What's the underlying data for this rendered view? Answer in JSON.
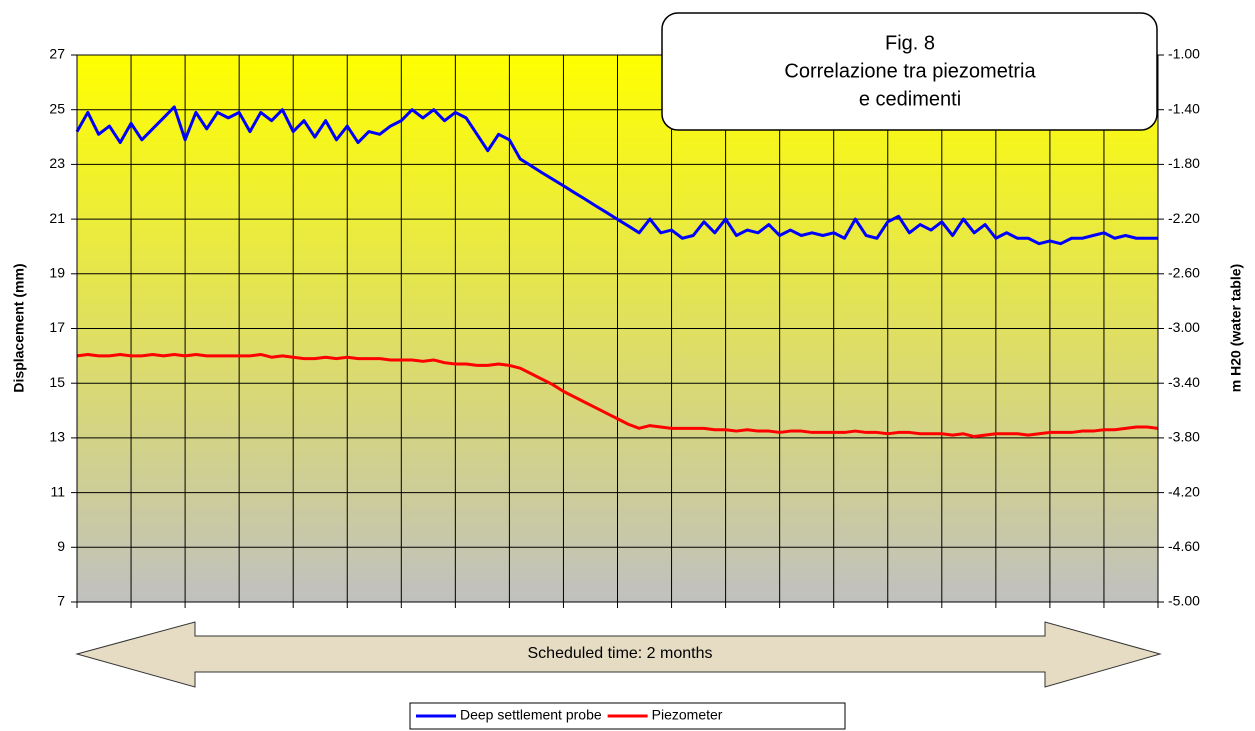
{
  "chart_data": {
    "type": "line",
    "title": [
      "Fig. 8",
      "Correlazione tra piezometria",
      "e cedimenti"
    ],
    "ylabel": "Displacement (mm)",
    "y2label": "m H20 (water table)",
    "annotation": "Scheduled time: 2 months",
    "ylim": [
      7,
      27
    ],
    "yticks": [
      7,
      9,
      11,
      13,
      15,
      17,
      19,
      21,
      23,
      25,
      27
    ],
    "y2lim": [
      -5,
      -1
    ],
    "y2ticks": [
      {
        "value": -5,
        "label": "-5.00"
      },
      {
        "value": -4.6,
        "label": "-4.60"
      },
      {
        "value": -4.2,
        "label": "-4.20"
      },
      {
        "value": -3.8,
        "label": "-3.80"
      },
      {
        "value": -3.4,
        "label": "-3.40"
      },
      {
        "value": -3,
        "label": "-3.00"
      },
      {
        "value": -2.6,
        "label": "-2.60"
      },
      {
        "value": -2.2,
        "label": "-2.20"
      },
      {
        "value": -1.8,
        "label": "-1.80"
      },
      {
        "value": -1.4,
        "label": "-1.40"
      },
      {
        "value": -1,
        "label": "-1.00"
      }
    ],
    "grid": true,
    "legend": "bottom",
    "series": [
      {
        "name": "Deep settlement probe",
        "color": "#0000ff",
        "values": [
          24.2,
          24.9,
          24.1,
          24.4,
          23.8,
          24.5,
          23.9,
          24.3,
          24.7,
          25.1,
          23.9,
          24.9,
          24.3,
          24.9,
          24.7,
          24.9,
          24.2,
          24.9,
          24.6,
          25.0,
          24.2,
          24.6,
          24.0,
          24.6,
          23.9,
          24.4,
          23.8,
          24.2,
          24.1,
          24.4,
          24.6,
          25.0,
          24.7,
          25.0,
          24.6,
          24.9,
          24.7,
          24.1,
          23.5,
          24.1,
          23.9,
          23.2,
          22.95,
          22.7,
          22.46,
          22.22,
          21.97,
          21.73,
          21.48,
          21.24,
          20.99,
          20.75,
          20.5,
          21.0,
          20.5,
          20.6,
          20.3,
          20.4,
          20.9,
          20.5,
          21.0,
          20.4,
          20.6,
          20.5,
          20.8,
          20.4,
          20.6,
          20.4,
          20.5,
          20.4,
          20.5,
          20.3,
          21.0,
          20.4,
          20.3,
          20.9,
          21.1,
          20.5,
          20.8,
          20.6,
          20.9,
          20.4,
          21.0,
          20.5,
          20.8,
          20.3,
          20.5,
          20.3,
          20.3,
          20.1,
          20.2,
          20.1,
          20.3,
          20.3,
          20.4,
          20.5,
          20.3,
          20.4,
          20.3,
          20.3,
          20.3
        ]
      },
      {
        "name": "Piezometer",
        "color": "#ff0000",
        "axis": "y2",
        "values": [
          -3.2,
          -3.19,
          -3.2,
          -3.2,
          -3.19,
          -3.2,
          -3.2,
          -3.19,
          -3.2,
          -3.19,
          -3.2,
          -3.19,
          -3.2,
          -3.2,
          -3.2,
          -3.2,
          -3.2,
          -3.19,
          -3.21,
          -3.2,
          -3.21,
          -3.22,
          -3.22,
          -3.21,
          -3.22,
          -3.21,
          -3.22,
          -3.22,
          -3.22,
          -3.23,
          -3.23,
          -3.23,
          -3.24,
          -3.23,
          -3.25,
          -3.26,
          -3.26,
          -3.27,
          -3.27,
          -3.26,
          -3.27,
          -3.29,
          -3.33,
          -3.37,
          -3.41,
          -3.46,
          -3.5,
          -3.54,
          -3.58,
          -3.62,
          -3.66,
          -3.7,
          -3.73,
          -3.71,
          -3.72,
          -3.73,
          -3.73,
          -3.73,
          -3.73,
          -3.74,
          -3.74,
          -3.75,
          -3.74,
          -3.75,
          -3.75,
          -3.76,
          -3.75,
          -3.75,
          -3.76,
          -3.76,
          -3.76,
          -3.76,
          -3.75,
          -3.76,
          -3.76,
          -3.77,
          -3.76,
          -3.76,
          -3.77,
          -3.77,
          -3.77,
          -3.78,
          -3.77,
          -3.79,
          -3.78,
          -3.77,
          -3.77,
          -3.77,
          -3.78,
          -3.77,
          -3.76,
          -3.76,
          -3.76,
          -3.75,
          -3.75,
          -3.74,
          -3.74,
          -3.73,
          -3.72,
          -3.72,
          -3.73
        ]
      }
    ]
  }
}
